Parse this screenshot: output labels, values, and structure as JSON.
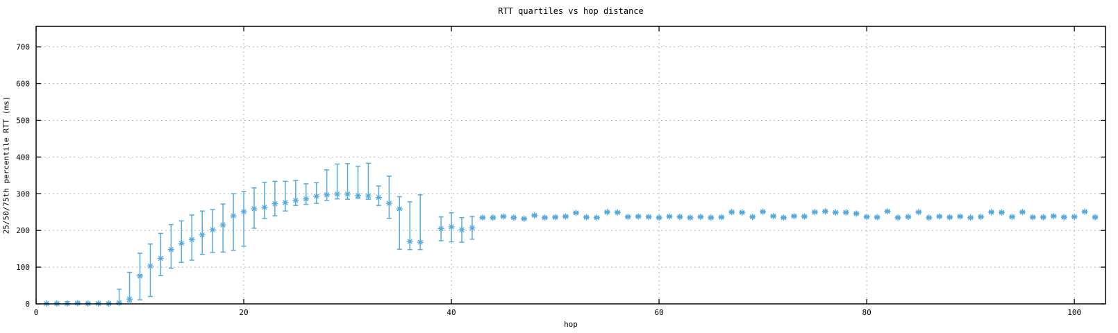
{
  "page": {
    "background": "#ffffff"
  },
  "chart_data": {
    "type": "scatter",
    "subtype": "yerrorbars-quartiles",
    "title": "RTT quartiles vs hop distance",
    "xlabel": "hop",
    "ylabel": "25/50/75th percentile RTT (ms)",
    "x_ticks": [
      0,
      20,
      40,
      60,
      80,
      100
    ],
    "y_ticks": [
      0,
      100,
      200,
      300,
      400,
      500,
      600,
      700
    ],
    "xlim": [
      0,
      103
    ],
    "ylim": [
      0,
      756
    ],
    "grid": true,
    "legend_position": "none",
    "marker": "asterisk",
    "series_color": "#56aadc",
    "grid_color": "#b3b3b3",
    "border_color": "#000000",
    "points_format": [
      "hop",
      "q25_ms",
      "median_ms",
      "q75_ms"
    ],
    "points": [
      [
        1,
        0,
        1,
        2
      ],
      [
        2,
        0,
        1,
        3
      ],
      [
        3,
        0,
        1,
        6
      ],
      [
        4,
        0,
        2,
        5
      ],
      [
        5,
        0,
        1,
        3
      ],
      [
        6,
        0,
        1,
        4
      ],
      [
        7,
        0,
        1,
        4
      ],
      [
        8,
        1,
        3,
        40
      ],
      [
        9,
        5,
        13,
        86
      ],
      [
        10,
        11,
        76,
        138
      ],
      [
        11,
        20,
        103,
        163
      ],
      [
        12,
        77,
        124,
        192
      ],
      [
        13,
        97,
        148,
        216
      ],
      [
        14,
        113,
        165,
        226
      ],
      [
        15,
        119,
        175,
        242
      ],
      [
        16,
        135,
        188,
        253
      ],
      [
        17,
        140,
        202,
        257
      ],
      [
        18,
        141,
        215,
        272
      ],
      [
        19,
        146,
        240,
        300
      ],
      [
        20,
        157,
        251,
        306
      ],
      [
        21,
        206,
        259,
        316
      ],
      [
        22,
        232,
        263,
        331
      ],
      [
        23,
        240,
        273,
        334
      ],
      [
        24,
        253,
        276,
        334
      ],
      [
        25,
        268,
        282,
        336
      ],
      [
        26,
        271,
        286,
        327
      ],
      [
        27,
        274,
        293,
        330
      ],
      [
        28,
        282,
        297,
        365
      ],
      [
        29,
        286,
        299,
        381
      ],
      [
        30,
        285,
        299,
        382
      ],
      [
        31,
        288,
        295,
        375
      ],
      [
        32,
        285,
        294,
        383
      ],
      [
        33,
        268,
        290,
        321
      ],
      [
        34,
        233,
        274,
        348
      ],
      [
        35,
        149,
        259,
        292
      ],
      [
        36,
        148,
        170,
        278
      ],
      [
        37,
        148,
        168,
        297
      ],
      [
        39,
        172,
        205,
        237
      ],
      [
        40,
        169,
        210,
        248
      ],
      [
        41,
        168,
        202,
        235
      ],
      [
        42,
        176,
        207,
        238
      ],
      [
        43,
        233,
        235,
        237
      ],
      [
        44,
        233,
        235,
        237
      ],
      [
        45,
        236,
        238,
        240
      ],
      [
        46,
        233,
        235,
        237
      ],
      [
        47,
        230,
        232,
        234
      ],
      [
        48,
        239,
        241,
        243
      ],
      [
        49,
        233,
        235,
        237
      ],
      [
        50,
        234,
        236,
        238
      ],
      [
        51,
        236,
        238,
        240
      ],
      [
        52,
        246,
        248,
        250
      ],
      [
        53,
        234,
        236,
        238
      ],
      [
        54,
        233,
        235,
        237
      ],
      [
        55,
        248,
        250,
        252
      ],
      [
        56,
        247,
        249,
        251
      ],
      [
        57,
        235,
        237,
        239
      ],
      [
        58,
        236,
        238,
        240
      ],
      [
        59,
        235,
        237,
        239
      ],
      [
        60,
        233,
        235,
        237
      ],
      [
        61,
        236,
        238,
        240
      ],
      [
        62,
        235,
        237,
        239
      ],
      [
        63,
        233,
        235,
        237
      ],
      [
        64,
        235,
        237,
        239
      ],
      [
        65,
        233,
        235,
        237
      ],
      [
        66,
        234,
        236,
        238
      ],
      [
        67,
        248,
        250,
        252
      ],
      [
        68,
        247,
        249,
        251
      ],
      [
        69,
        235,
        237,
        239
      ],
      [
        70,
        249,
        251,
        253
      ],
      [
        71,
        237,
        239,
        241
      ],
      [
        72,
        233,
        235,
        237
      ],
      [
        73,
        237,
        239,
        241
      ],
      [
        74,
        236,
        238,
        240
      ],
      [
        75,
        248,
        250,
        252
      ],
      [
        76,
        250,
        252,
        254
      ],
      [
        77,
        247,
        249,
        251
      ],
      [
        78,
        247,
        249,
        251
      ],
      [
        79,
        244,
        246,
        248
      ],
      [
        80,
        235,
        237,
        239
      ],
      [
        81,
        234,
        236,
        238
      ],
      [
        82,
        250,
        252,
        254
      ],
      [
        83,
        233,
        235,
        237
      ],
      [
        84,
        235,
        237,
        239
      ],
      [
        85,
        248,
        250,
        252
      ],
      [
        86,
        233,
        235,
        237
      ],
      [
        87,
        236,
        238,
        240
      ],
      [
        88,
        234,
        236,
        238
      ],
      [
        89,
        236,
        238,
        240
      ],
      [
        90,
        233,
        235,
        237
      ],
      [
        91,
        235,
        237,
        239
      ],
      [
        92,
        248,
        250,
        252
      ],
      [
        93,
        247,
        249,
        251
      ],
      [
        94,
        235,
        237,
        239
      ],
      [
        95,
        248,
        250,
        252
      ],
      [
        96,
        234,
        236,
        238
      ],
      [
        97,
        234,
        236,
        238
      ],
      [
        98,
        237,
        239,
        241
      ],
      [
        99,
        234,
        236,
        238
      ],
      [
        100,
        235,
        237,
        239
      ],
      [
        101,
        249,
        251,
        253
      ],
      [
        102,
        234,
        236,
        238
      ]
    ]
  }
}
